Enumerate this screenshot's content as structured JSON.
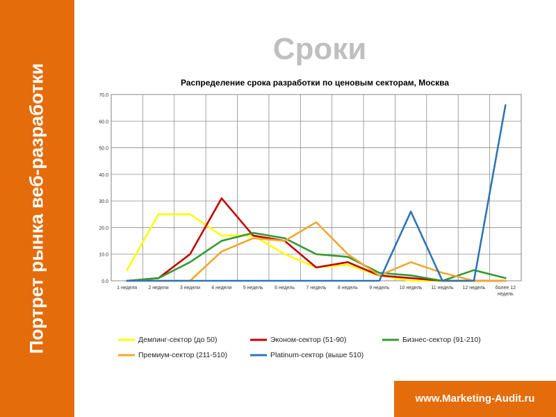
{
  "sidebar": {
    "title": "Портрет рынка веб-разработки"
  },
  "slide": {
    "title": "Сроки"
  },
  "footer": {
    "url": "www.Marketing-Audit.ru"
  },
  "colors": {
    "accent": "#e46c0a"
  },
  "chart_data": {
    "type": "line",
    "title": "Распределение срока разработки по ценовым секторам, Москва",
    "categories": [
      "1 неделя",
      "2 недели",
      "3 недели",
      "4 недели",
      "5 недель",
      "6 недель",
      "7 недель",
      "8 недель",
      "9 недель",
      "10 недель",
      "11 недель",
      "12 недель",
      "более 12 недель"
    ],
    "ylim": [
      0,
      70
    ],
    "ytick_labels": [
      "0.0",
      "10.0",
      "20.0",
      "30.0",
      "40.0",
      "50.0",
      "60.0",
      "70.0"
    ],
    "grid": true,
    "legend_position": "bottom",
    "series": [
      {
        "name": "Демпинг-сектор (до 50)",
        "color": "#ffff00",
        "values": [
          4,
          25,
          25,
          17,
          17,
          10,
          5,
          6,
          2,
          0,
          0,
          0,
          0
        ]
      },
      {
        "name": "Эконом-сектор (51-90)",
        "color": "#c00000",
        "values": [
          0,
          1,
          10,
          31,
          17,
          15,
          5,
          7,
          2,
          1,
          0,
          0,
          0
        ]
      },
      {
        "name": "Бизнес-сектор (91-210)",
        "color": "#339933",
        "values": [
          0,
          1,
          7,
          15,
          18,
          16,
          10,
          9,
          3,
          2,
          0,
          4,
          1
        ]
      },
      {
        "name": "Премиум-сектор (211-510)",
        "color": "#f0a830",
        "values": [
          0,
          0,
          0,
          11,
          16,
          15,
          22,
          10,
          2,
          7,
          3,
          0,
          0
        ]
      },
      {
        "name": "Platinum-сектор (выше 510)",
        "color": "#2e75b6",
        "values": [
          0,
          0,
          0,
          0,
          0,
          0,
          0,
          0,
          0,
          26,
          0,
          0,
          66
        ]
      }
    ]
  }
}
